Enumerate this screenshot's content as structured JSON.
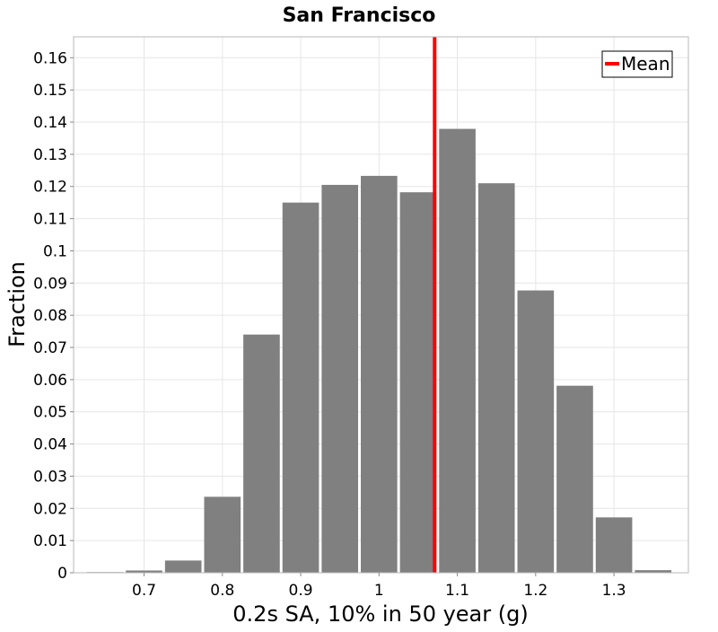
{
  "chart_data": {
    "type": "bar",
    "title": "San Francisco",
    "xlabel": "0.2s SA, 10% in 50 year (g)",
    "ylabel": "Fraction",
    "xlim": [
      0.61,
      1.395
    ],
    "ylim": [
      0,
      0.1665
    ],
    "bin_width": 0.05,
    "bin_centers": [
      0.65,
      0.7,
      0.75,
      0.8,
      0.85,
      0.9,
      0.95,
      1.0,
      1.05,
      1.1,
      1.15,
      1.2,
      1.25,
      1.3,
      1.35,
      1.4
    ],
    "values": [
      0.0002,
      0.0007,
      0.0038,
      0.0236,
      0.074,
      0.115,
      0.1205,
      0.1233,
      0.1182,
      0.1379,
      0.121,
      0.0877,
      0.0581,
      0.0172,
      0.0008,
      0.0001
    ],
    "mean": 1.071,
    "x_ticks": [
      {
        "value": 0.7,
        "label": "0.7"
      },
      {
        "value": 0.8,
        "label": "0.8"
      },
      {
        "value": 0.9,
        "label": "0.9"
      },
      {
        "value": 1.0,
        "label": "1"
      },
      {
        "value": 1.1,
        "label": "1.1"
      },
      {
        "value": 1.2,
        "label": "1.2"
      },
      {
        "value": 1.3,
        "label": "1.3"
      }
    ],
    "y_ticks": [
      {
        "value": 0,
        "label": "0"
      },
      {
        "value": 0.01,
        "label": "0.01"
      },
      {
        "value": 0.02,
        "label": "0.02"
      },
      {
        "value": 0.03,
        "label": "0.03"
      },
      {
        "value": 0.04,
        "label": "0.04"
      },
      {
        "value": 0.05,
        "label": "0.05"
      },
      {
        "value": 0.06,
        "label": "0.06"
      },
      {
        "value": 0.07,
        "label": "0.07"
      },
      {
        "value": 0.08,
        "label": "0.08"
      },
      {
        "value": 0.09,
        "label": "0.09"
      },
      {
        "value": 0.1,
        "label": "0.1"
      },
      {
        "value": 0.11,
        "label": "0.11"
      },
      {
        "value": 0.12,
        "label": "0.12"
      },
      {
        "value": 0.13,
        "label": "0.13"
      },
      {
        "value": 0.14,
        "label": "0.14"
      },
      {
        "value": 0.15,
        "label": "0.15"
      },
      {
        "value": 0.16,
        "label": "0.16"
      }
    ],
    "grid": true,
    "legend": {
      "position": "top-right",
      "entries": [
        {
          "label": "Mean",
          "color": "#ff0000"
        }
      ]
    },
    "colors": {
      "bar": "#808080",
      "mean_line": "#ff0000",
      "grid": "#e6e6e6",
      "frame": "#b8b8b8"
    }
  }
}
